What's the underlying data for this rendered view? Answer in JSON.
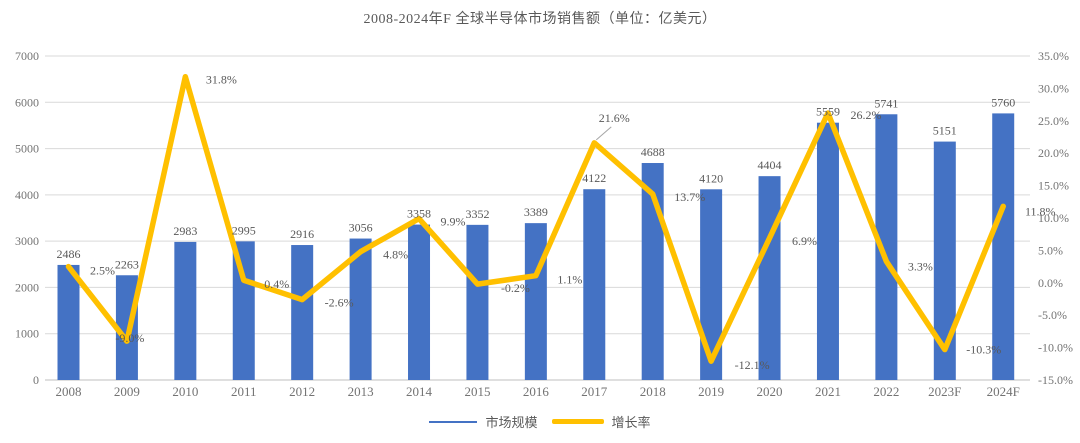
{
  "chart_data": {
    "type": "combo",
    "title": "2008-2024年F 全球半导体市场销售额（单位：亿美元）",
    "categories": [
      "2008",
      "2009",
      "2010",
      "2011",
      "2012",
      "2013",
      "2014",
      "2015",
      "2016",
      "2017",
      "2018",
      "2019",
      "2020",
      "2021",
      "2022",
      "2023F",
      "2024F"
    ],
    "series": [
      {
        "name": "市场规模",
        "type": "bar",
        "axis": "left",
        "color": "#4472C4",
        "values": [
          2486,
          2263,
          2983,
          2995,
          2916,
          3056,
          3358,
          3352,
          3389,
          4122,
          4688,
          4120,
          4404,
          5559,
          5741,
          5151,
          5760
        ]
      },
      {
        "name": "增长率",
        "type": "line",
        "axis": "right",
        "color": "#FFC000",
        "values_pct": [
          2.5,
          -9.0,
          31.8,
          0.4,
          -2.6,
          4.8,
          9.9,
          -0.2,
          1.1,
          21.6,
          13.7,
          -12.1,
          6.9,
          26.2,
          3.3,
          -10.3,
          11.8
        ],
        "labels": [
          "2.5%",
          "-9.0%",
          "31.8%",
          "0.4%",
          "-2.6%",
          "4.8%",
          "9.9%",
          "-0.2%",
          "1.1%",
          "21.6%",
          "13.7%",
          "-12.1%",
          "6.9%",
          "26.2%",
          "3.3%",
          "-10.3%",
          "11.8%"
        ]
      }
    ],
    "left_axis": {
      "min": 0,
      "max": 7000,
      "step": 1000,
      "ticks": [
        "0",
        "1000",
        "2000",
        "3000",
        "4000",
        "5000",
        "6000",
        "7000"
      ]
    },
    "right_axis": {
      "min": -15,
      "max": 35,
      "step": 5,
      "ticks": [
        "35.0%",
        "30.0%",
        "25.0%",
        "20.0%",
        "15.0%",
        "10.0%",
        "5.0%",
        "0.0%",
        "-5.0%",
        "-10.0%",
        "-15.0%"
      ]
    },
    "legend": [
      "市场规模",
      "增长率"
    ],
    "grid": true,
    "legend_position": "bottom",
    "colors": {
      "bar": "#4472C4",
      "line": "#FFC000",
      "grid": "#D9D9D9",
      "axis_line": "#BFBFBF",
      "axis_text": "#737373",
      "label_text": "#595959",
      "callout_line": "#A6A6A6",
      "background": "#FFFFFF"
    }
  }
}
